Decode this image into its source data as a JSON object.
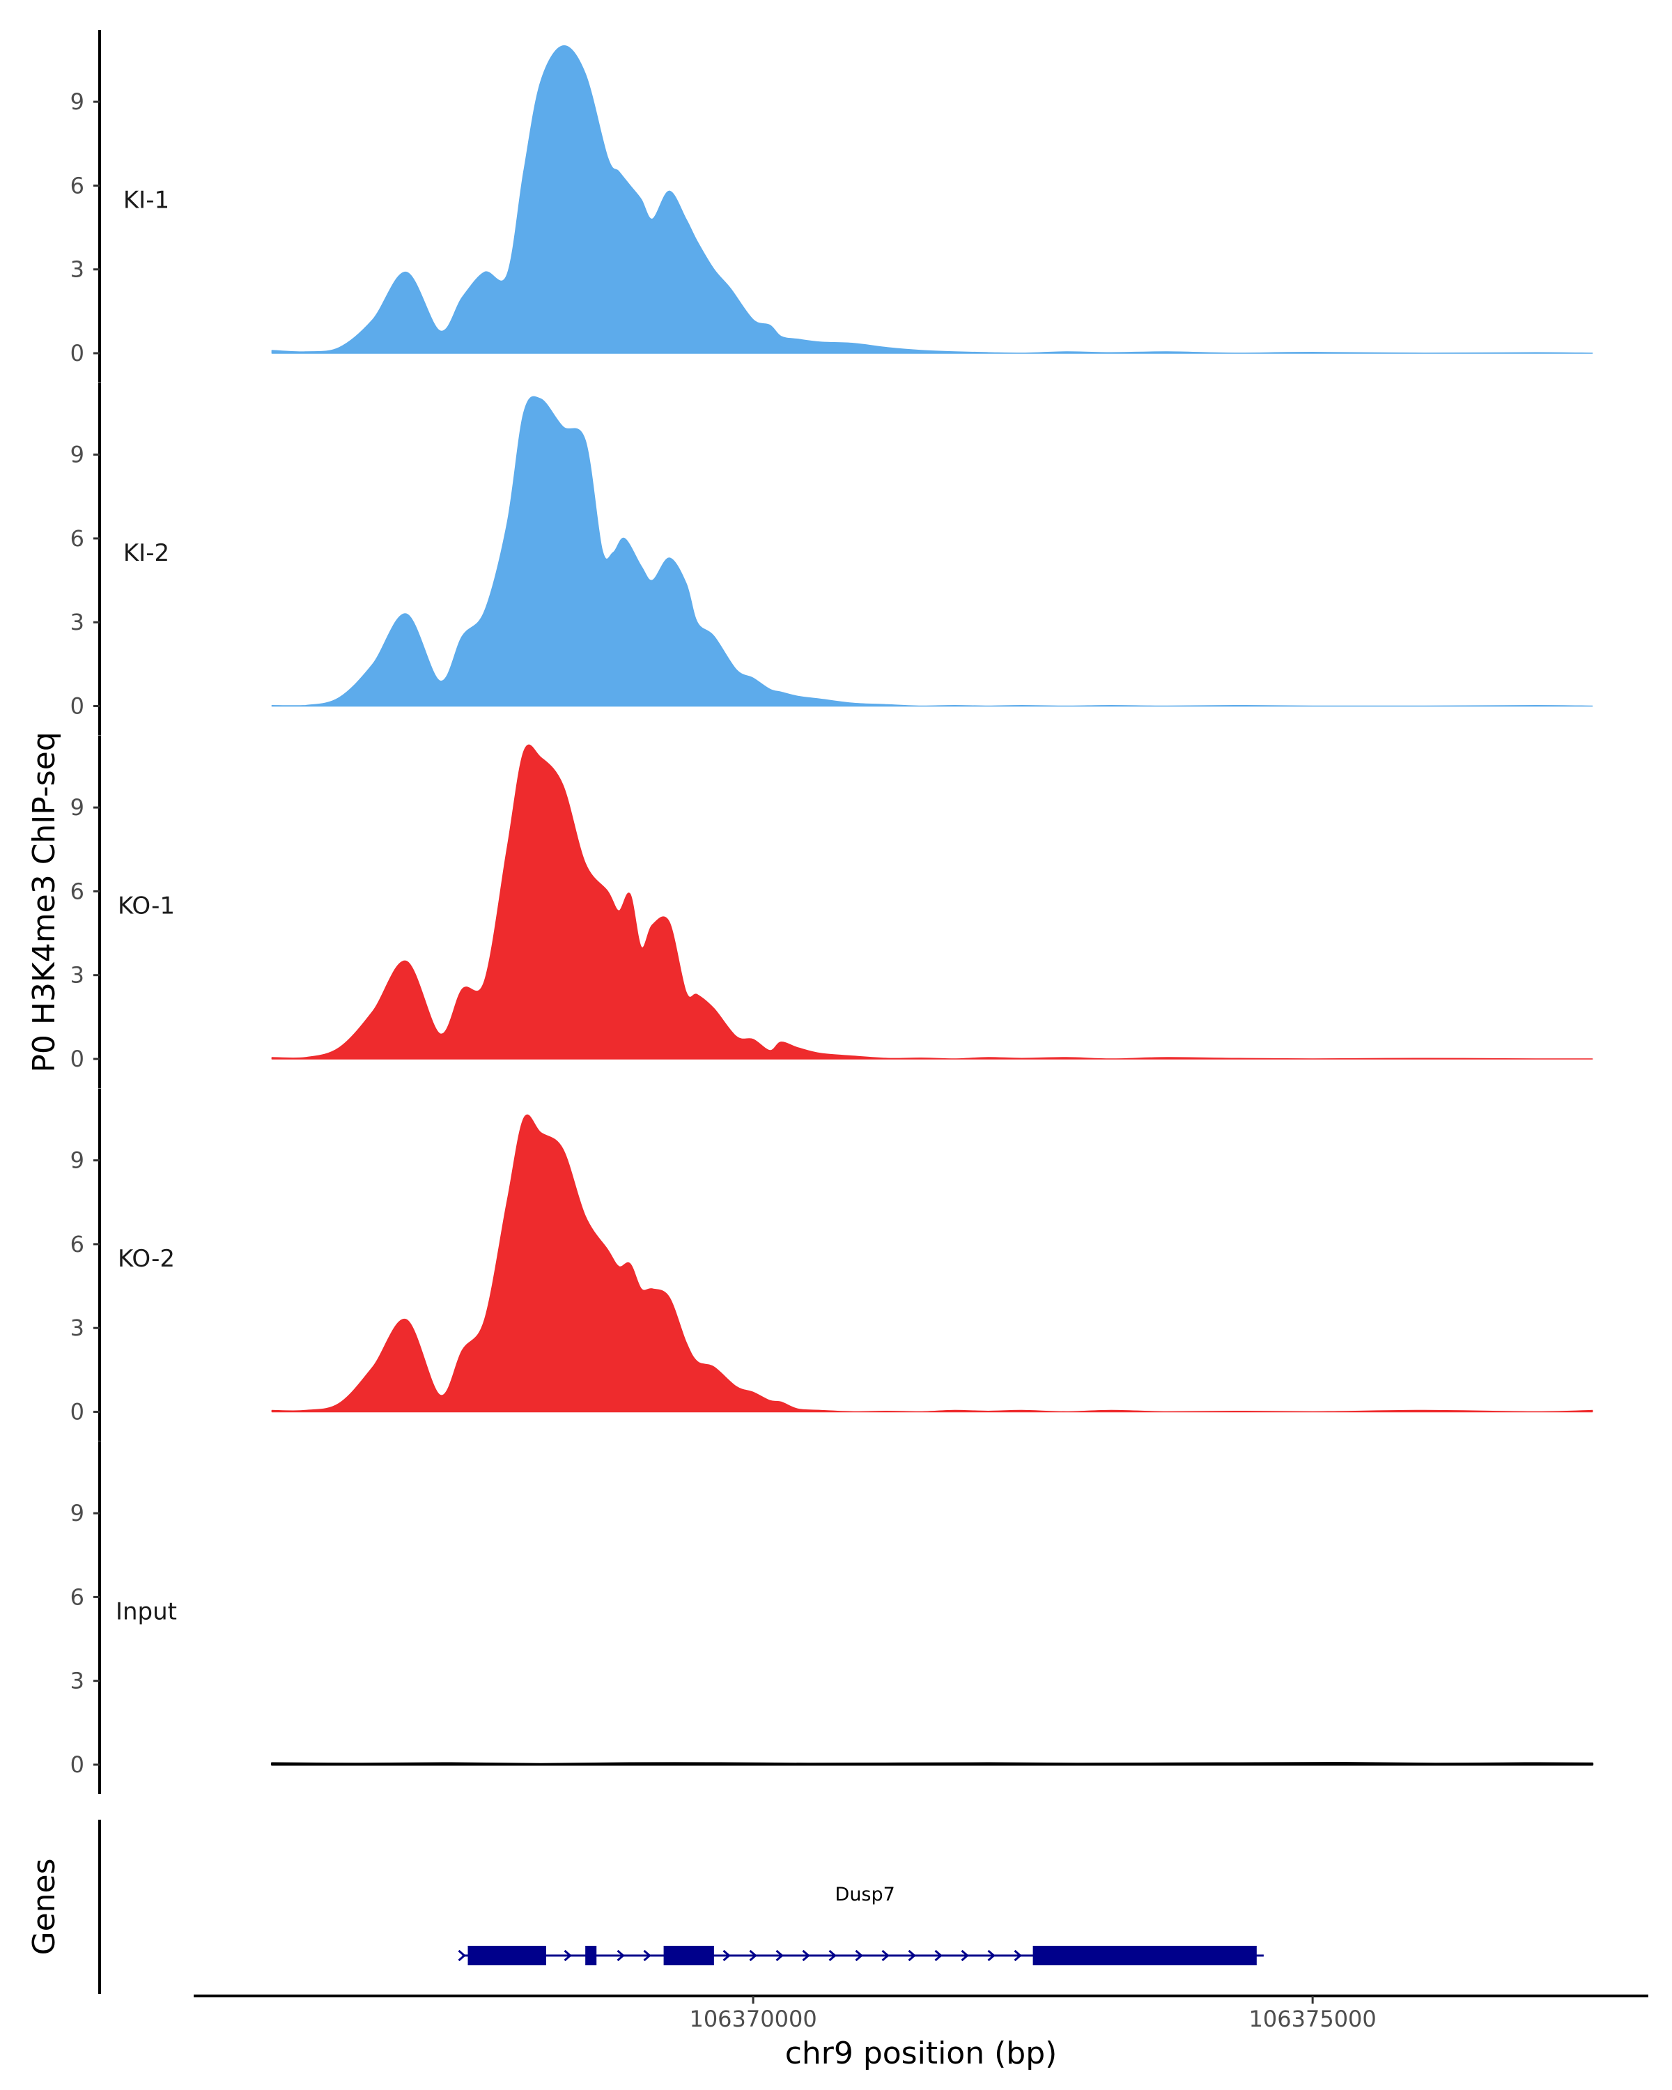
{
  "chart_data": {
    "type": "area",
    "ylabel": "P0 H3K4me3 ChIP-seq",
    "xlabel": "chr9 position (bp)",
    "xlim": [
      106365000,
      106378000
    ],
    "x_ticks": [
      106370000,
      106375000
    ],
    "x_tick_labels": [
      "106370000",
      "106375000"
    ],
    "ylim": [
      0,
      11.5
    ],
    "y_ticks": [
      0,
      3,
      6,
      9
    ],
    "y_tick_labels": [
      "0",
      "3",
      "6",
      "9"
    ],
    "colors": {
      "KI": "#5dabeb",
      "KO": "#ee2b2d",
      "Input": "#000000",
      "gene": "#00008b"
    },
    "tracks": [
      {
        "name": "KI-1",
        "color": "#5dabeb",
        "x": [
          106365700,
          106366000,
          106366300,
          106366600,
          106366900,
          106367200,
          106367400,
          106367600,
          106367800,
          106367950,
          106368100,
          106368300,
          106368500,
          106368700,
          106368800,
          106368900,
          106369000,
          106369100,
          106369250,
          106369400,
          106369500,
          106369650,
          106369800,
          106370000,
          106370150,
          106370250,
          106370400,
          106370600,
          106370900,
          106371200,
          106371500,
          106371800,
          106372100,
          106372400,
          106372800,
          106373200,
          106373700,
          106374300,
          106375000,
          106376000,
          106377000,
          106377500
        ],
        "y": [
          0.1,
          0.05,
          0.2,
          1.2,
          2.9,
          0.8,
          2.0,
          2.9,
          2.8,
          6.5,
          9.7,
          11.0,
          10.0,
          7.0,
          6.5,
          6.0,
          5.5,
          4.8,
          5.8,
          4.8,
          4.0,
          3.0,
          2.3,
          1.2,
          1.0,
          0.6,
          0.5,
          0.4,
          0.35,
          0.2,
          0.1,
          0.05,
          0.02,
          0.0,
          0.05,
          0.02,
          0.05,
          0.0,
          0.03,
          0.0,
          0.02,
          0.0
        ]
      },
      {
        "name": "KI-2",
        "color": "#5dabeb",
        "x": [
          106365700,
          106366000,
          106366300,
          106366600,
          106366900,
          106367200,
          106367400,
          106367600,
          106367800,
          106367950,
          106368100,
          106368300,
          106368500,
          106368650,
          106368750,
          106368850,
          106369000,
          106369100,
          106369250,
          106369400,
          106369500,
          106369650,
          106369850,
          106370000,
          106370150,
          106370250,
          106370400,
          106370600,
          106370900,
          106371200,
          106371500,
          106371800,
          106372100,
          106372400,
          106372800,
          106373200,
          106373700,
          106374300,
          106375000,
          106376000,
          106377000,
          106377500
        ],
        "y": [
          0.02,
          0.02,
          0.3,
          1.5,
          3.3,
          0.9,
          2.5,
          3.4,
          6.5,
          10.5,
          11.0,
          10.0,
          9.5,
          5.6,
          5.5,
          6.0,
          5.0,
          4.5,
          5.3,
          4.4,
          3.0,
          2.5,
          1.3,
          1.0,
          0.6,
          0.5,
          0.35,
          0.25,
          0.1,
          0.05,
          0.0,
          0.02,
          0.0,
          0.02,
          0.0,
          0.02,
          0.0,
          0.02,
          0.0,
          0.0,
          0.02,
          0.0
        ]
      },
      {
        "name": "KO-1",
        "color": "#ee2b2d",
        "x": [
          106365700,
          106366000,
          106366300,
          106366600,
          106366900,
          106367200,
          106367400,
          106367600,
          106367800,
          106367950,
          106368100,
          106368300,
          106368500,
          106368700,
          106368800,
          106368900,
          106369000,
          106369100,
          106369250,
          106369400,
          106369500,
          106369650,
          106369850,
          106370000,
          106370150,
          106370250,
          106370400,
          106370600,
          106370900,
          106371200,
          106371500,
          106371800,
          106372100,
          106372400,
          106372800,
          106373200,
          106373700,
          106374300,
          106375000,
          106376000,
          106377000,
          106377500
        ],
        "y": [
          0.05,
          0.05,
          0.4,
          1.7,
          3.5,
          0.9,
          2.5,
          2.8,
          7.5,
          11.0,
          10.8,
          9.8,
          7.0,
          6.0,
          5.3,
          5.9,
          4.0,
          4.8,
          4.9,
          2.4,
          2.3,
          1.8,
          0.8,
          0.7,
          0.3,
          0.6,
          0.4,
          0.2,
          0.1,
          0.02,
          0.03,
          0.0,
          0.05,
          0.02,
          0.05,
          0.0,
          0.05,
          0.02,
          0.0,
          0.02,
          0.0,
          0.0
        ]
      },
      {
        "name": "KO-2",
        "color": "#ee2b2d",
        "x": [
          106365700,
          106366000,
          106366300,
          106366600,
          106366900,
          106367200,
          106367400,
          106367600,
          106367800,
          106367950,
          106368100,
          106368300,
          106368500,
          106368700,
          106368800,
          106368900,
          106369000,
          106369100,
          106369250,
          106369400,
          106369500,
          106369650,
          106369850,
          106370000,
          106370150,
          106370250,
          106370400,
          106370600,
          106370900,
          106371200,
          106371500,
          106371800,
          106372100,
          106372400,
          106372800,
          106373200,
          106373700,
          106374300,
          106375000,
          106376000,
          106377000,
          106377500
        ],
        "y": [
          0.05,
          0.05,
          0.3,
          1.6,
          3.3,
          0.6,
          2.2,
          3.3,
          7.5,
          10.5,
          10.0,
          9.4,
          7.0,
          5.8,
          5.2,
          5.3,
          4.4,
          4.4,
          4.1,
          2.5,
          1.8,
          1.6,
          0.9,
          0.7,
          0.4,
          0.35,
          0.1,
          0.05,
          0.0,
          0.02,
          0.0,
          0.05,
          0.02,
          0.05,
          0.0,
          0.05,
          0.0,
          0.02,
          0.0,
          0.05,
          0.0,
          0.05
        ]
      },
      {
        "name": "Input",
        "color": "#000000",
        "x": [
          106365700,
          106366500,
          106367300,
          106368100,
          106368900,
          106369700,
          106370500,
          106371300,
          106372100,
          106372900,
          106373700,
          106374500,
          106375300,
          106376100,
          106376900,
          106377500
        ],
        "y": [
          0.05,
          0.03,
          0.05,
          0.02,
          0.05,
          0.05,
          0.03,
          0.04,
          0.05,
          0.03,
          0.04,
          0.05,
          0.06,
          0.03,
          0.05,
          0.04
        ]
      }
    ],
    "genes_panel": {
      "label": "Genes",
      "genes": [
        {
          "name": "Dusp7",
          "strand": "+",
          "start": 106367450,
          "end": 106374550,
          "exons": [
            {
              "start": 106367450,
              "end": 106368150,
              "thick": true
            },
            {
              "start": 106368500,
              "end": 106368600,
              "thick": true
            },
            {
              "start": 106369200,
              "end": 106369650,
              "thick": true
            },
            {
              "start": 106372500,
              "end": 106374500,
              "thick": true
            }
          ]
        }
      ]
    }
  }
}
